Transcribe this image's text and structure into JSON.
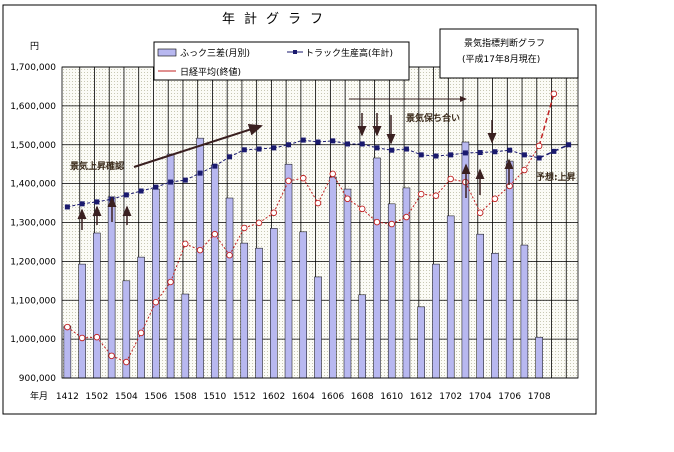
{
  "chart_data": {
    "type": "bar",
    "title": "年計グラフ",
    "ylabel": "円",
    "xlabel": "年月",
    "ylim": [
      900000,
      1700000
    ],
    "y_ticks": [
      "1,700,000",
      "1,600,000",
      "1,500,000",
      "1,400,000",
      "1,300,000",
      "1,200,000",
      "1,100,000",
      "1,000,000",
      "900,000"
    ],
    "y_tick_values": [
      1700000,
      1600000,
      1500000,
      1400000,
      1300000,
      1200000,
      1100000,
      1000000,
      900000
    ],
    "x_tick_labels": [
      "1412",
      "1502",
      "1504",
      "1506",
      "1508",
      "1510",
      "1512",
      "1602",
      "1604",
      "1606",
      "1608",
      "1610",
      "1612",
      "1702",
      "1704",
      "1706",
      "1708"
    ],
    "category_count": 35,
    "grid": true,
    "legend_position": "top-center",
    "series": [
      {
        "name": "ふっク三差(月別)",
        "type": "bar",
        "color": "#b8b8f0",
        "values": [
          1034000,
          1193000,
          1273000,
          1366000,
          1150000,
          1211000,
          1386000,
          1476000,
          1116000,
          1517000,
          1448000,
          1363000,
          1247000,
          1234000,
          1285000,
          1450000,
          1276000,
          1160000,
          1417000,
          1386000,
          1114000,
          1466000,
          1348000,
          1389000,
          1083000,
          1193000,
          1317000,
          1507000,
          1270000,
          1221000,
          1458000,
          1242000,
          1005000,
          null,
          null
        ]
      },
      {
        "name": "トラック生産高(年計)",
        "type": "line",
        "color": "#1a1a6e",
        "values": [
          1340000,
          1348000,
          1353000,
          1360000,
          1371000,
          1381000,
          1391000,
          1404000,
          1409000,
          1427000,
          1445000,
          1469000,
          1487000,
          1489000,
          1492000,
          1500000,
          1512000,
          1507000,
          1510000,
          1502000,
          1502000,
          1492000,
          1486000,
          1489000,
          1474000,
          1471000,
          1474000,
          1479000,
          1480000,
          1482000,
          1486000,
          1474000,
          1466000,
          1483000,
          1500000
        ],
        "forecast_from_index": 32
      },
      {
        "name": "日経平均(終値)",
        "type": "line",
        "color": "#c02020",
        "values": [
          1031000,
          1003000,
          1005000,
          957000,
          941000,
          1016000,
          1095000,
          1147000,
          1245000,
          1229000,
          1270000,
          1216000,
          1286000,
          1299000,
          1325000,
          1407000,
          1414000,
          1350000,
          1425000,
          1361000,
          1335000,
          1301000,
          1296000,
          1314000,
          1373000,
          1369000,
          1412000,
          1404000,
          1325000,
          1361000,
          1394000,
          1435000,
          1497000,
          1631000,
          null
        ],
        "forecast_from_index": 32
      }
    ],
    "annotations": {
      "rise": "景気上昇確認",
      "flat": "景気保ち合い",
      "forecast": "予想:上昇"
    }
  },
  "info_box": {
    "line1": "景気指標判断グラフ",
    "line2": "(平成17年8月現在)"
  }
}
